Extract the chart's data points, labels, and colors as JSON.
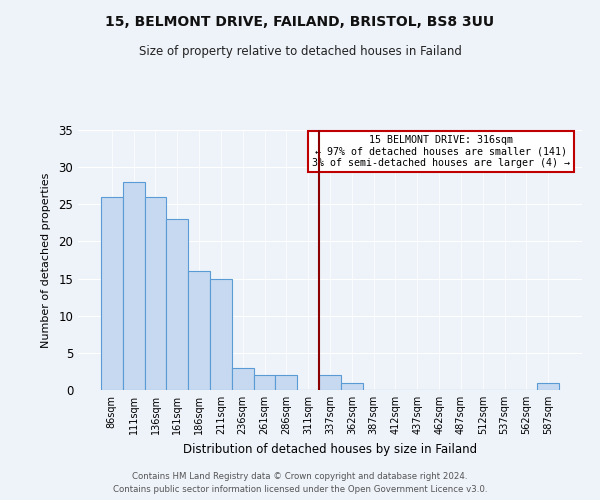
{
  "title": "15, BELMONT DRIVE, FAILAND, BRISTOL, BS8 3UU",
  "subtitle": "Size of property relative to detached houses in Failand",
  "xlabel": "Distribution of detached houses by size in Failand",
  "ylabel": "Number of detached properties",
  "bar_labels": [
    "86sqm",
    "111sqm",
    "136sqm",
    "161sqm",
    "186sqm",
    "211sqm",
    "236sqm",
    "261sqm",
    "286sqm",
    "311sqm",
    "337sqm",
    "362sqm",
    "387sqm",
    "412sqm",
    "437sqm",
    "462sqm",
    "487sqm",
    "512sqm",
    "537sqm",
    "562sqm",
    "587sqm"
  ],
  "bar_values": [
    26,
    28,
    26,
    23,
    16,
    15,
    3,
    2,
    2,
    0,
    2,
    1,
    0,
    0,
    0,
    0,
    0,
    0,
    0,
    0,
    1
  ],
  "bar_color": "#c6d9f0",
  "bar_edge_color": "#5b9bd5",
  "vline_x": 9.5,
  "vline_color": "#8b0000",
  "annotation_title": "15 BELMONT DRIVE: 316sqm",
  "annotation_line1": "← 97% of detached houses are smaller (141)",
  "annotation_line2": "3% of semi-detached houses are larger (4) →",
  "annotation_box_color": "#ffffff",
  "annotation_box_edge": "#c00000",
  "ylim": [
    0,
    35
  ],
  "yticks": [
    0,
    5,
    10,
    15,
    20,
    25,
    30,
    35
  ],
  "footer1": "Contains HM Land Registry data © Crown copyright and database right 2024.",
  "footer2": "Contains public sector information licensed under the Open Government Licence v3.0.",
  "bg_color": "#eef2f9"
}
